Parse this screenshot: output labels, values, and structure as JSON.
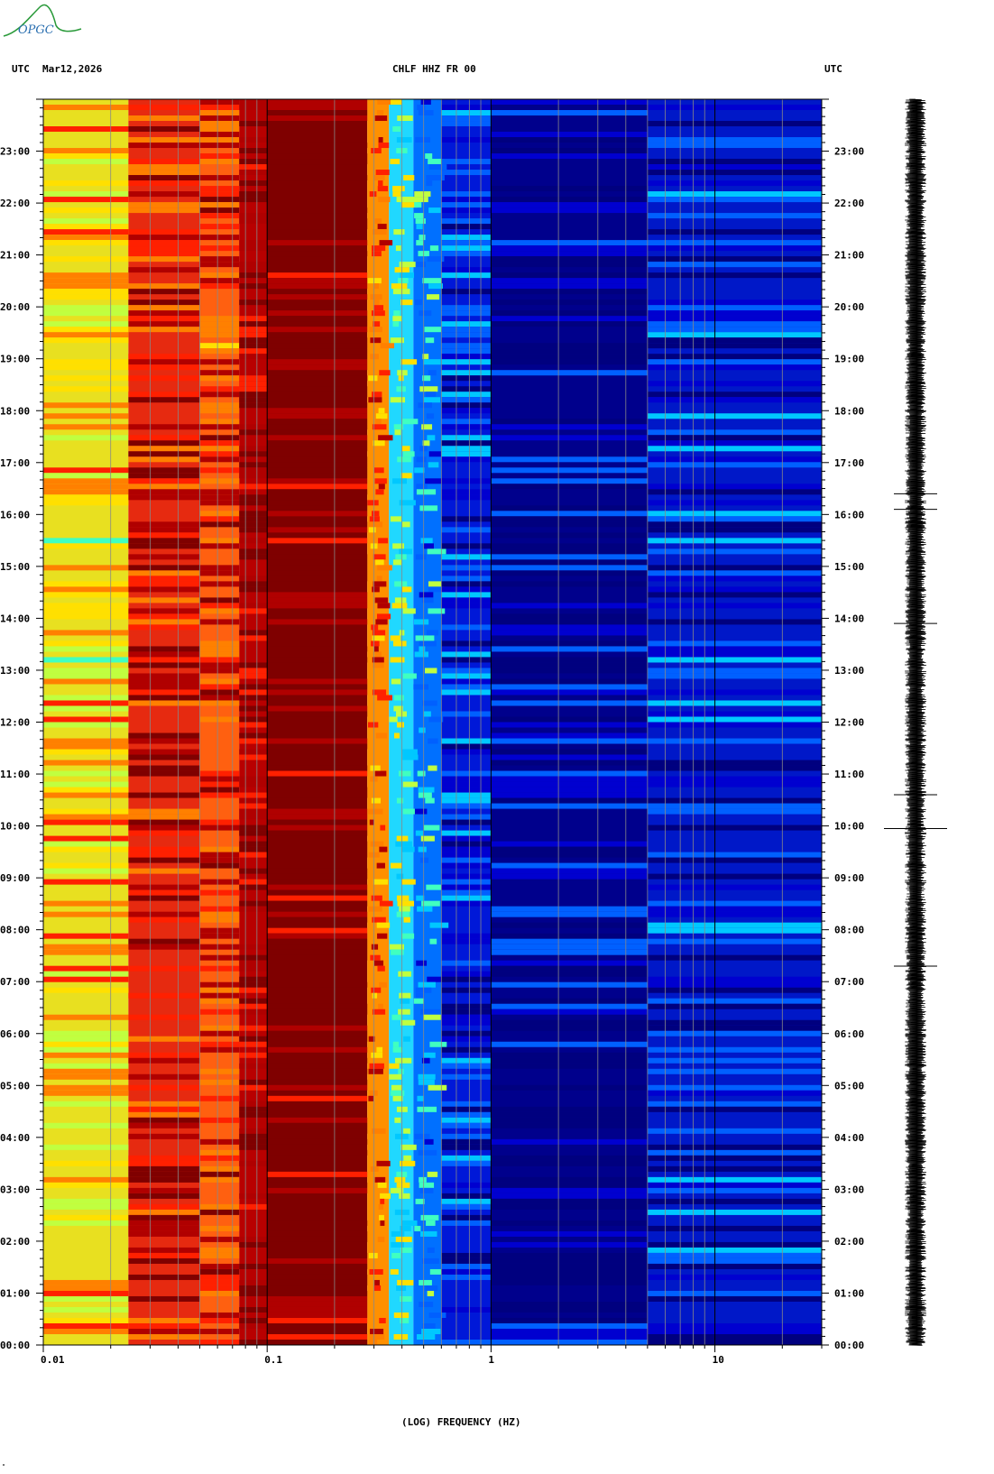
{
  "header": {
    "left_tz": "UTC",
    "date": "Mar12,2026",
    "station": "CHLF HHZ FR 00",
    "right_tz": "UTC"
  },
  "logo": {
    "text": "OPGC"
  },
  "footer_mark": "\"",
  "chart_data": {
    "type": "heatmap",
    "title": "CHLF HHZ FR 00",
    "xlabel": "(LOG) FREQUENCY (HZ)",
    "x_scale": "log",
    "xlim": [
      0.01,
      30
    ],
    "x_ticks": [
      {
        "value": 0.01,
        "label": "0.01"
      },
      {
        "value": 0.1,
        "label": "0.1"
      },
      {
        "value": 1,
        "label": "1"
      },
      {
        "value": 10,
        "label": "10"
      }
    ],
    "ylim_hours": [
      0,
      24
    ],
    "y_ticks": [
      "00:00",
      "01:00",
      "02:00",
      "03:00",
      "04:00",
      "05:00",
      "06:00",
      "07:00",
      "08:00",
      "09:00",
      "10:00",
      "11:00",
      "12:00",
      "13:00",
      "14:00",
      "15:00",
      "16:00",
      "17:00",
      "18:00",
      "19:00",
      "20:00",
      "21:00",
      "22:00",
      "23:00"
    ],
    "colormap": [
      "#00007f",
      "#0000d0",
      "#0060ff",
      "#00c8ff",
      "#40ffc0",
      "#c0ff40",
      "#ffe000",
      "#ff8000",
      "#ff2000",
      "#b00000",
      "#7f0000"
    ],
    "bands": [
      {
        "from": 0.01,
        "to": 0.024,
        "level": 0.62,
        "color": "#e8e020"
      },
      {
        "from": 0.024,
        "to": 0.05,
        "level": 0.85,
        "color": "#e62a10"
      },
      {
        "from": 0.05,
        "to": 0.075,
        "level": 0.82,
        "color": "#ff6010"
      },
      {
        "from": 0.075,
        "to": 0.1,
        "level": 0.95,
        "color": "#b80000"
      },
      {
        "from": 0.1,
        "to": 0.28,
        "level": 1.0,
        "color": "#7f0000"
      },
      {
        "from": 0.28,
        "to": 0.35,
        "level": 0.75,
        "color": "#ff9000"
      },
      {
        "from": 0.35,
        "to": 0.45,
        "level": 0.45,
        "color": "#20d8ff"
      },
      {
        "from": 0.45,
        "to": 0.6,
        "level": 0.3,
        "color": "#0070ff"
      },
      {
        "from": 0.6,
        "to": 1.0,
        "level": 0.15,
        "color": "#0018d8"
      },
      {
        "from": 1.0,
        "to": 5.0,
        "level": 0.05,
        "color": "#00008c"
      },
      {
        "from": 5.0,
        "to": 30.0,
        "level": 0.12,
        "color": "#0018c8"
      }
    ],
    "seismogram": {
      "events_hours": [
        7.3,
        9.95,
        10.6,
        13.9,
        16.1,
        16.4
      ],
      "large_event_hour": 9.95
    }
  }
}
